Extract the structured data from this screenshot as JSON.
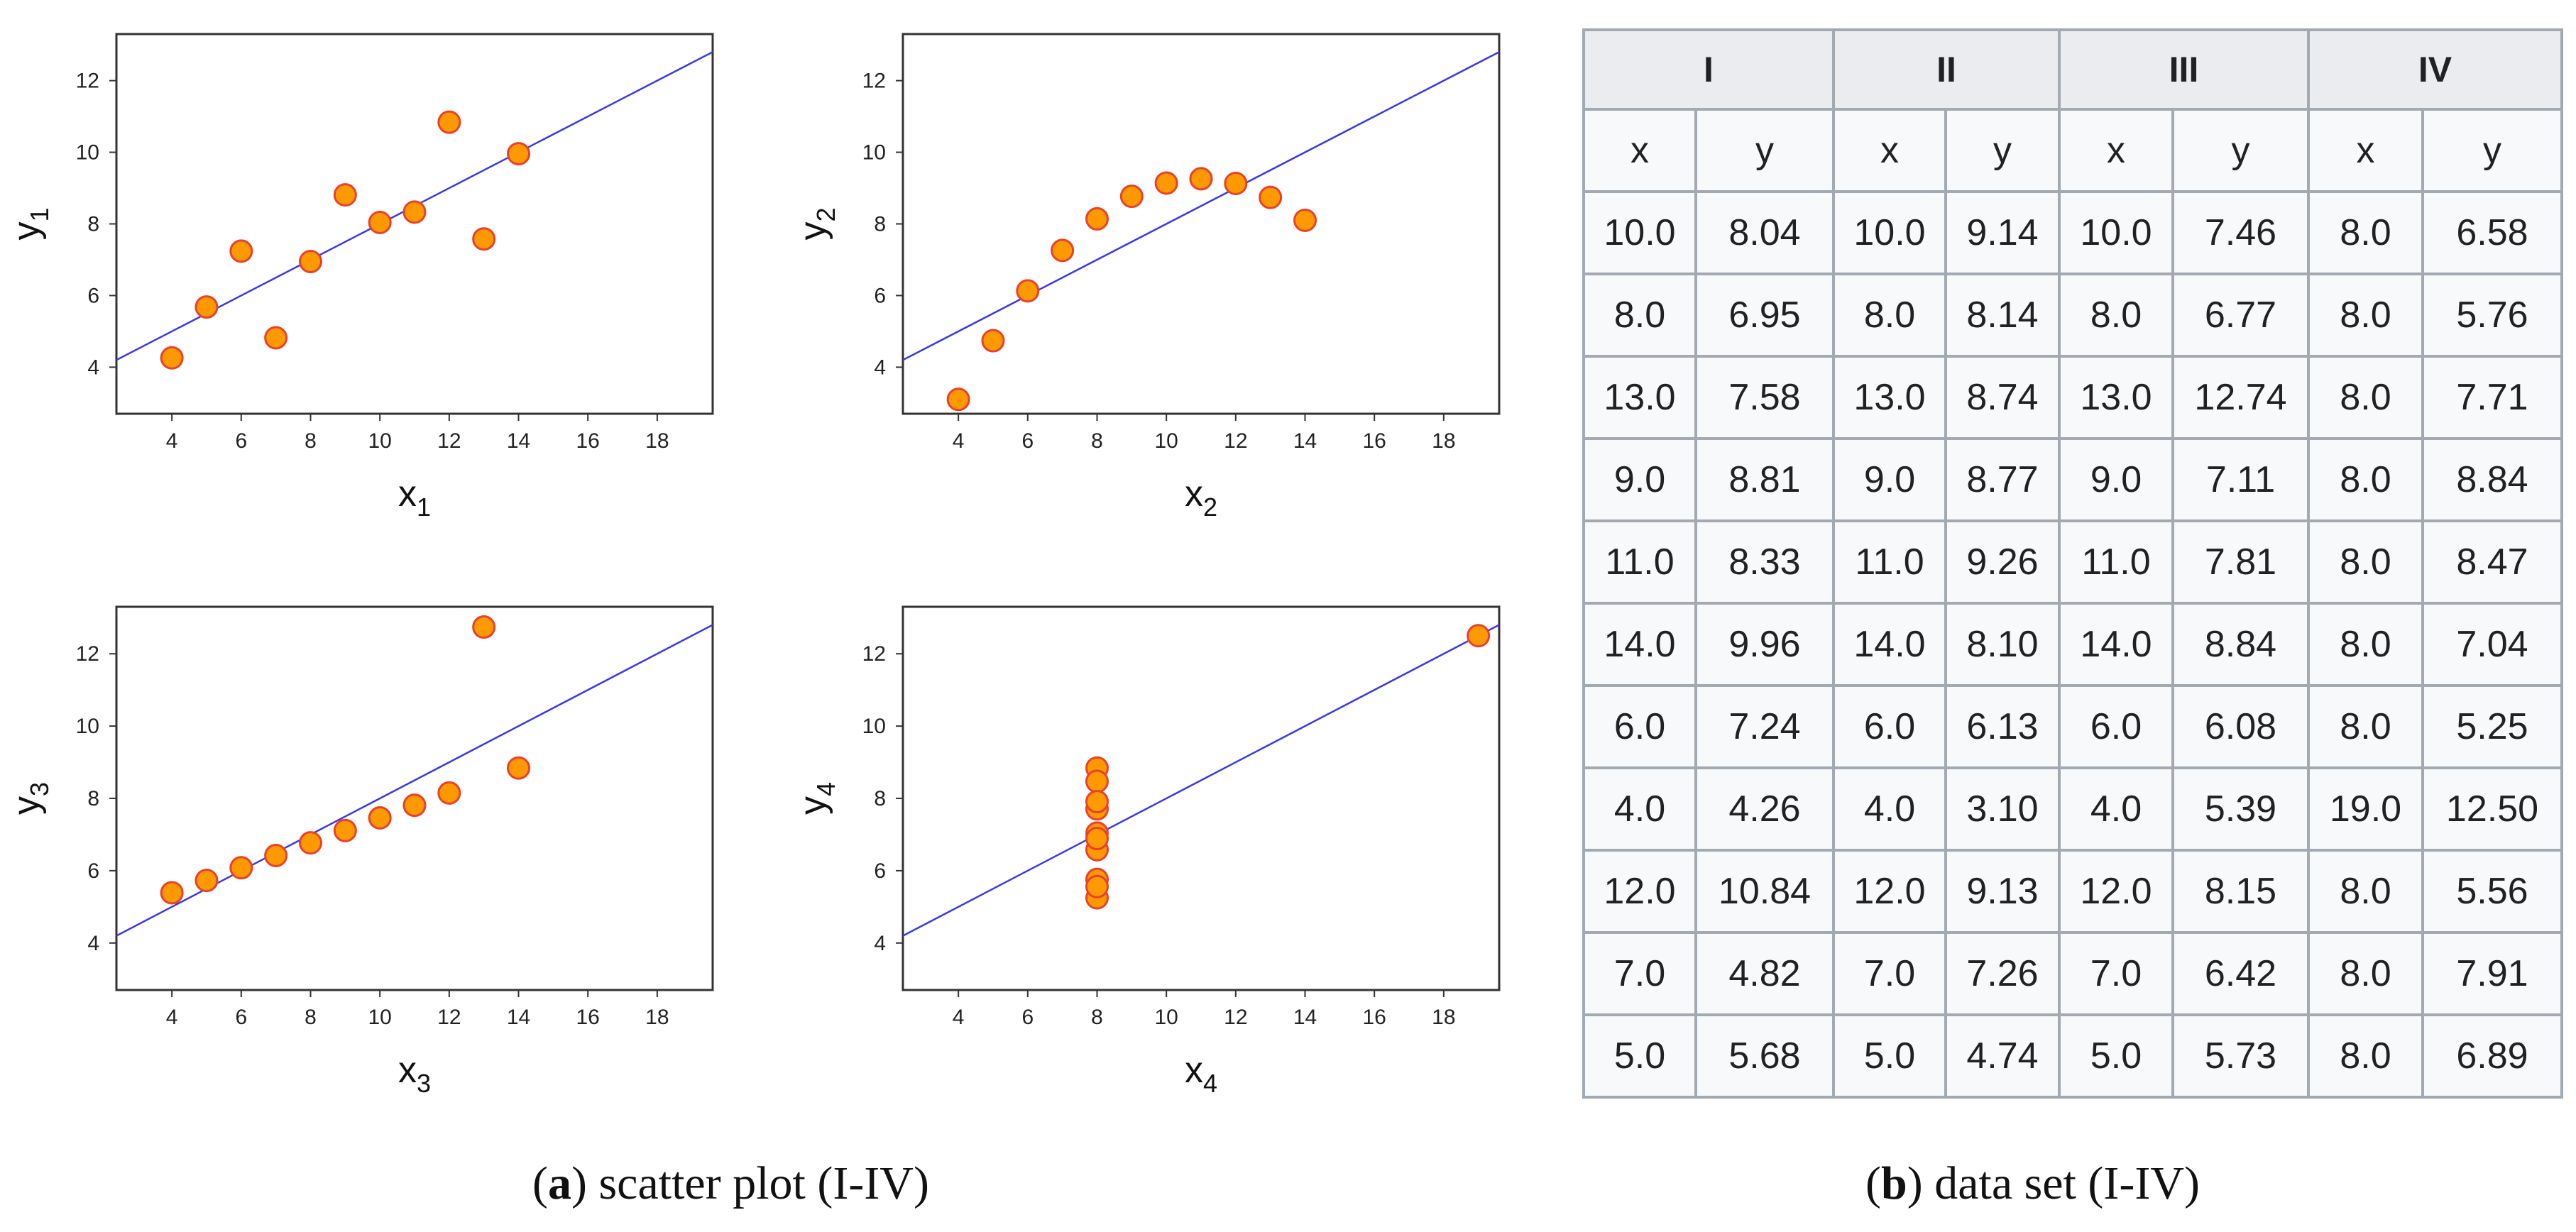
{
  "chart_data": [
    {
      "type": "scatter",
      "title": "",
      "xlabel": "x",
      "xlabel_sub": "1",
      "ylabel": "y",
      "ylabel_sub": "1",
      "xlim": [
        2.4,
        19.6
      ],
      "ylim": [
        2.7,
        13.3
      ],
      "xticks": [
        4,
        6,
        8,
        10,
        12,
        14,
        16,
        18
      ],
      "yticks": [
        4,
        6,
        8,
        10,
        12
      ],
      "x": [
        10,
        8,
        13,
        9,
        11,
        14,
        6,
        4,
        12,
        7,
        5
      ],
      "y": [
        8.04,
        6.95,
        7.58,
        8.81,
        8.33,
        9.96,
        7.24,
        4.26,
        10.84,
        4.82,
        5.68
      ],
      "fit_line": {
        "intercept": 3.0,
        "slope": 0.5
      },
      "marker_color": "#ff9900",
      "marker_edge": "#e8412d",
      "line_color": "#3a3ae6"
    },
    {
      "type": "scatter",
      "title": "",
      "xlabel": "x",
      "xlabel_sub": "2",
      "ylabel": "y",
      "ylabel_sub": "2",
      "xlim": [
        2.4,
        19.6
      ],
      "ylim": [
        2.7,
        13.3
      ],
      "xticks": [
        4,
        6,
        8,
        10,
        12,
        14,
        16,
        18
      ],
      "yticks": [
        4,
        6,
        8,
        10,
        12
      ],
      "x": [
        10,
        8,
        13,
        9,
        11,
        14,
        6,
        4,
        12,
        7,
        5
      ],
      "y": [
        9.14,
        8.14,
        8.74,
        8.77,
        9.26,
        8.1,
        6.13,
        3.1,
        9.13,
        7.26,
        4.74
      ],
      "fit_line": {
        "intercept": 3.0,
        "slope": 0.5
      },
      "marker_color": "#ff9900",
      "marker_edge": "#e8412d",
      "line_color": "#3a3ae6"
    },
    {
      "type": "scatter",
      "title": "",
      "xlabel": "x",
      "xlabel_sub": "3",
      "ylabel": "y",
      "ylabel_sub": "3",
      "xlim": [
        2.4,
        19.6
      ],
      "ylim": [
        2.7,
        13.3
      ],
      "xticks": [
        4,
        6,
        8,
        10,
        12,
        14,
        16,
        18
      ],
      "yticks": [
        4,
        6,
        8,
        10,
        12
      ],
      "x": [
        10,
        8,
        13,
        9,
        11,
        14,
        6,
        4,
        12,
        7,
        5
      ],
      "y": [
        7.46,
        6.77,
        12.74,
        7.11,
        7.81,
        8.84,
        6.08,
        5.39,
        8.15,
        6.42,
        5.73
      ],
      "fit_line": {
        "intercept": 3.0,
        "slope": 0.5
      },
      "marker_color": "#ff9900",
      "marker_edge": "#e8412d",
      "line_color": "#3a3ae6"
    },
    {
      "type": "scatter",
      "title": "",
      "xlabel": "x",
      "xlabel_sub": "4",
      "ylabel": "y",
      "ylabel_sub": "4",
      "xlim": [
        2.4,
        19.6
      ],
      "ylim": [
        2.7,
        13.3
      ],
      "xticks": [
        4,
        6,
        8,
        10,
        12,
        14,
        16,
        18
      ],
      "yticks": [
        4,
        6,
        8,
        10,
        12
      ],
      "x": [
        8,
        8,
        8,
        8,
        8,
        8,
        8,
        19,
        8,
        8,
        8
      ],
      "y": [
        6.58,
        5.76,
        7.71,
        8.84,
        8.47,
        7.04,
        5.25,
        12.5,
        5.56,
        7.91,
        6.89
      ],
      "fit_line": {
        "intercept": 3.0,
        "slope": 0.5
      },
      "marker_color": "#ff9900",
      "marker_edge": "#e8412d",
      "line_color": "#3a3ae6"
    },
    {
      "type": "table",
      "groups": [
        "I",
        "II",
        "III",
        "IV"
      ],
      "columns": [
        "x",
        "y",
        "x",
        "y",
        "x",
        "y",
        "x",
        "y"
      ],
      "rows": [
        [
          "10.0",
          "8.04",
          "10.0",
          "9.14",
          "10.0",
          "7.46",
          "8.0",
          "6.58"
        ],
        [
          "8.0",
          "6.95",
          "8.0",
          "8.14",
          "8.0",
          "6.77",
          "8.0",
          "5.76"
        ],
        [
          "13.0",
          "7.58",
          "13.0",
          "8.74",
          "13.0",
          "12.74",
          "8.0",
          "7.71"
        ],
        [
          "9.0",
          "8.81",
          "9.0",
          "8.77",
          "9.0",
          "7.11",
          "8.0",
          "8.84"
        ],
        [
          "11.0",
          "8.33",
          "11.0",
          "9.26",
          "11.0",
          "7.81",
          "8.0",
          "8.47"
        ],
        [
          "14.0",
          "9.96",
          "14.0",
          "8.10",
          "14.0",
          "8.84",
          "8.0",
          "7.04"
        ],
        [
          "6.0",
          "7.24",
          "6.0",
          "6.13",
          "6.0",
          "6.08",
          "8.0",
          "5.25"
        ],
        [
          "4.0",
          "4.26",
          "4.0",
          "3.10",
          "4.0",
          "5.39",
          "19.0",
          "12.50"
        ],
        [
          "12.0",
          "10.84",
          "12.0",
          "9.13",
          "12.0",
          "8.15",
          "8.0",
          "5.56"
        ],
        [
          "7.0",
          "4.82",
          "7.0",
          "7.26",
          "7.0",
          "6.42",
          "8.0",
          "7.91"
        ],
        [
          "5.0",
          "5.68",
          "5.0",
          "4.74",
          "5.0",
          "5.73",
          "8.0",
          "6.89"
        ]
      ]
    }
  ],
  "captions": {
    "a": {
      "letter": "a",
      "text": "scatter plot (I-IV)"
    },
    "b": {
      "letter": "b",
      "text": "data set (I-IV)"
    }
  },
  "colors": {
    "header_bg": "#eaecf0",
    "cell_bg": "#f8f9fa",
    "border": "#a2a9b1"
  }
}
